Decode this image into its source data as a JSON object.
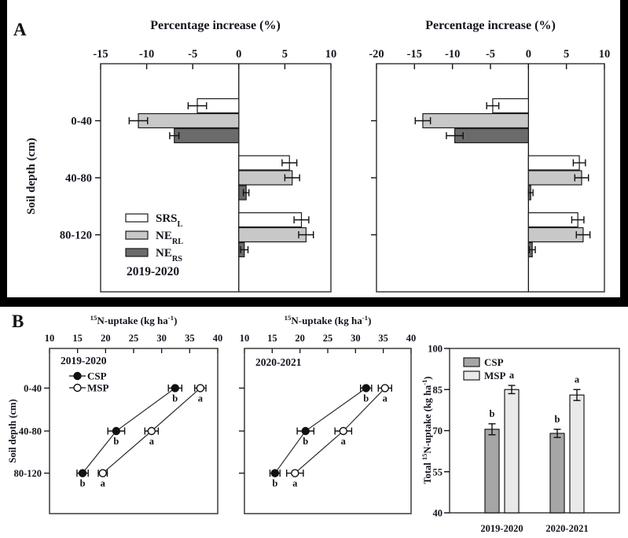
{
  "panels": {
    "a": {
      "label": "A"
    },
    "b": {
      "label": "B"
    }
  },
  "colors": {
    "text": "#14141f",
    "axis": "#3b3b3b",
    "error": "#111111",
    "srsl_fill": "#ffffff",
    "nerl_fill": "#c8c8c8",
    "ners_fill": "#6b6b6b",
    "csp_fill": "#a6a6a6",
    "msp_fill": "#e9e9e9"
  },
  "chart_data": [
    {
      "id": "chart-a-left",
      "type": "hbar",
      "title": "Percentage increase (%)",
      "ylabel": "Soil depth (cm)",
      "categories": [
        "0-40",
        "40-80",
        "80-120"
      ],
      "xlim": [
        -15,
        10
      ],
      "xticks": [
        -15,
        -10,
        -5,
        0,
        5,
        10
      ],
      "year_label": "2019-2020",
      "legend": true,
      "series": [
        {
          "name": "SRS_{L}",
          "fill": "#ffffff",
          "values": [
            -4.5,
            5.5,
            6.8
          ],
          "errors": [
            1.0,
            0.8,
            0.8
          ]
        },
        {
          "name": "NE_{RL}",
          "fill": "#c8c8c8",
          "values": [
            -10.9,
            5.8,
            7.3
          ],
          "errors": [
            1.0,
            0.8,
            0.8
          ]
        },
        {
          "name": "NE_{RS}",
          "fill": "#6b6b6b",
          "values": [
            -7.0,
            0.8,
            0.6
          ],
          "errors": [
            0.5,
            0.3,
            0.4
          ]
        }
      ]
    },
    {
      "id": "chart-a-right",
      "type": "hbar",
      "title": "Percentage increase (%)",
      "ylabel": "",
      "categories": [
        "0-40",
        "40-80",
        "80-120"
      ],
      "xlim": [
        -20,
        10
      ],
      "xticks": [
        -20,
        -15,
        -10,
        -5,
        0,
        5,
        10
      ],
      "year_label": "",
      "legend": false,
      "series": [
        {
          "name": "SRS_{L}",
          "fill": "#ffffff",
          "values": [
            -4.7,
            6.7,
            6.5
          ],
          "errors": [
            0.8,
            0.8,
            0.8
          ]
        },
        {
          "name": "NE_{RL}",
          "fill": "#c8c8c8",
          "values": [
            -13.9,
            7.0,
            7.2
          ],
          "errors": [
            1.0,
            0.9,
            0.9
          ]
        },
        {
          "name": "NE_{RS}",
          "fill": "#6b6b6b",
          "values": [
            -9.7,
            0.3,
            0.5
          ],
          "errors": [
            1.1,
            0.3,
            0.4
          ]
        }
      ]
    },
    {
      "id": "chart-b-left",
      "type": "scatter",
      "title": "^{15}N-uptake (kg ha^{-1})",
      "ylabel": "Soil depth (cm)",
      "categories": [
        "0-40",
        "40-80",
        "80-120"
      ],
      "xlim": [
        10,
        40
      ],
      "xticks": [
        10,
        15,
        20,
        25,
        30,
        35,
        40
      ],
      "year_label": "2019-2020",
      "legend": true,
      "series": [
        {
          "name": "CSP",
          "marker": "filled",
          "values": [
            32.4,
            21.9,
            15.9
          ],
          "errors": [
            1.2,
            1.5,
            1.0
          ],
          "letters": [
            "b",
            "b",
            "b"
          ]
        },
        {
          "name": "MSP",
          "marker": "open",
          "values": [
            36.9,
            28.2,
            19.5
          ],
          "errors": [
            1.0,
            1.2,
            0.8
          ],
          "letters": [
            "a",
            "a",
            "a"
          ]
        }
      ]
    },
    {
      "id": "chart-b-mid",
      "type": "scatter",
      "title": "^{15}N-uptake (kg ha^{-1})",
      "ylabel": "",
      "categories": [
        "0-40",
        "40-80",
        "80-120"
      ],
      "xlim": [
        10,
        40
      ],
      "xticks": [
        10,
        15,
        20,
        25,
        30,
        35,
        40
      ],
      "year_label": "2020-2021",
      "legend": false,
      "series": [
        {
          "name": "CSP",
          "marker": "filled",
          "values": [
            31.9,
            21.0,
            15.5
          ],
          "errors": [
            1.0,
            1.5,
            0.9
          ],
          "letters": [
            "b",
            "b",
            "b"
          ]
        },
        {
          "name": "MSP",
          "marker": "open",
          "values": [
            35.3,
            27.8,
            19.1
          ],
          "errors": [
            1.2,
            1.5,
            1.5
          ],
          "letters": [
            "a",
            "a",
            "a"
          ]
        }
      ]
    },
    {
      "id": "chart-b-right",
      "type": "vbar",
      "title": "",
      "ylabel": "Total ^{15}N-uptake (kg ha^{-1})",
      "categories": [
        "2019-2020",
        "2020-2021"
      ],
      "ylim": [
        40,
        100
      ],
      "yticks": [
        40,
        55,
        70,
        85,
        100
      ],
      "legend": true,
      "series": [
        {
          "name": "CSP",
          "fill": "#a6a6a6",
          "values": [
            70.5,
            69.0
          ],
          "errors": [
            2.0,
            1.5
          ],
          "letters": [
            "b",
            "b"
          ]
        },
        {
          "name": "MSP",
          "fill": "#e9e9e9",
          "values": [
            85.0,
            83.0
          ],
          "errors": [
            1.5,
            2.0
          ],
          "letters": [
            "a",
            "a"
          ]
        }
      ]
    }
  ]
}
